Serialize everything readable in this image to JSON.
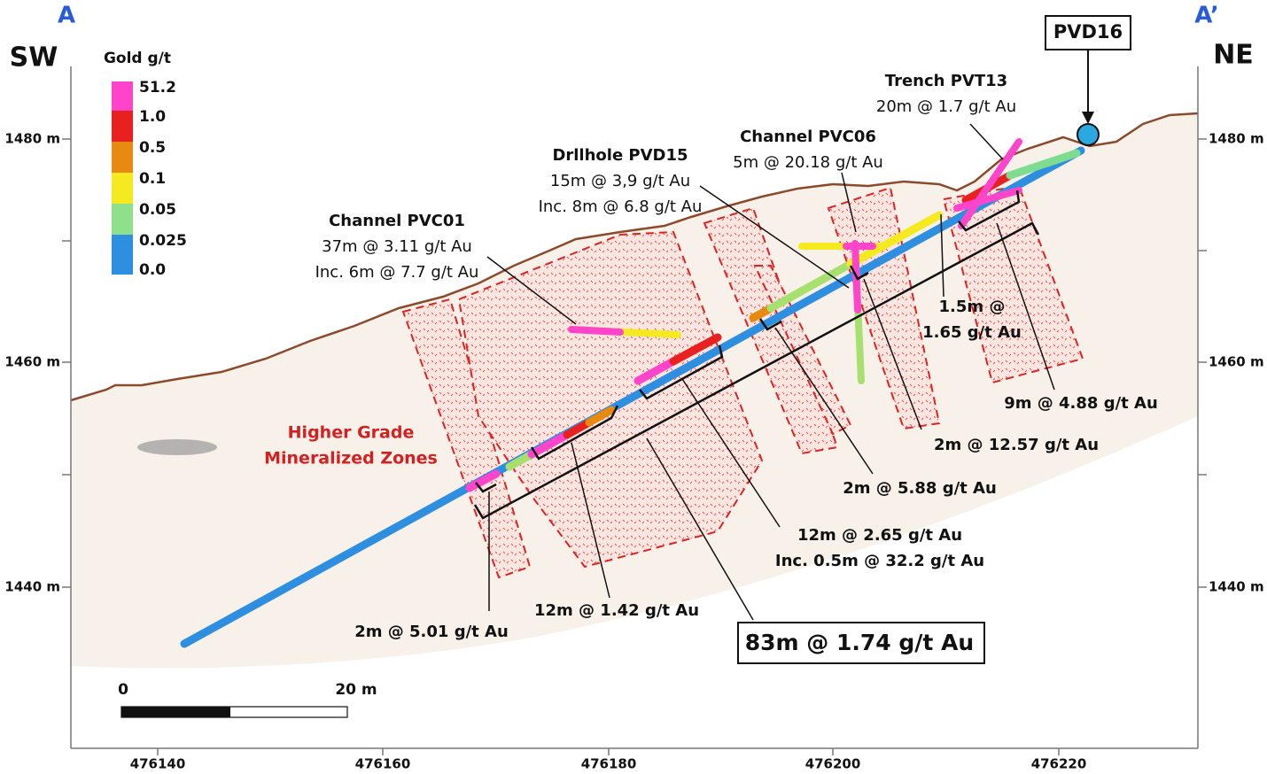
{
  "section": {
    "start": "A",
    "end": "A’",
    "left_direction": "SW",
    "right_direction": "NE"
  },
  "legend": {
    "title": "Gold g/t",
    "labels": [
      "51.2",
      "1.0",
      "0.5",
      "0.1",
      "0.05",
      "0.025",
      "0.0"
    ]
  },
  "axes": {
    "elevation_labels": [
      "1480 m",
      "1460 m",
      "1440 m"
    ],
    "easting_labels": [
      "476140",
      "476160",
      "476180",
      "476200",
      "476220"
    ]
  },
  "scale_bar": {
    "start": "0",
    "end": "20 m"
  },
  "zone_label": [
    "Higher Grade",
    "Mineralized Zones"
  ],
  "collar_label": "PVD16",
  "annotations": [
    {
      "lines": [
        "Trench PVT13",
        "20m @ 1.7 g/t Au"
      ]
    },
    {
      "lines": [
        "Channel PVC06",
        "5m @ 20.18 g/t Au"
      ]
    },
    {
      "lines": [
        "Drllhole PVD15",
        "15m @ 3,9 g/t Au",
        "Inc. 8m @ 6.8 g/t Au"
      ]
    },
    {
      "lines": [
        "Channel PVC01",
        "37m @ 3.11 g/t Au",
        "Inc. 6m @ 7.7 g/t Au"
      ]
    },
    {
      "lines": [
        "1.5m @",
        "1.65 g/t Au"
      ]
    },
    {
      "lines": [
        "9m @ 4.88 g/t Au"
      ]
    },
    {
      "lines": [
        "2m @ 12.57 g/t Au"
      ]
    },
    {
      "lines": [
        "2m @ 5.88 g/t Au"
      ]
    },
    {
      "lines": [
        "12m @ 2.65 g/t Au",
        "Inc. 0.5m @ 32.2 g/t Au"
      ]
    },
    {
      "lines": [
        "12m @ 1.42 g/t Au"
      ]
    },
    {
      "lines": [
        "2m @ 5.01 g/t Au"
      ]
    }
  ],
  "headline_intercept": "83m @ 1.74 g/t Au"
}
